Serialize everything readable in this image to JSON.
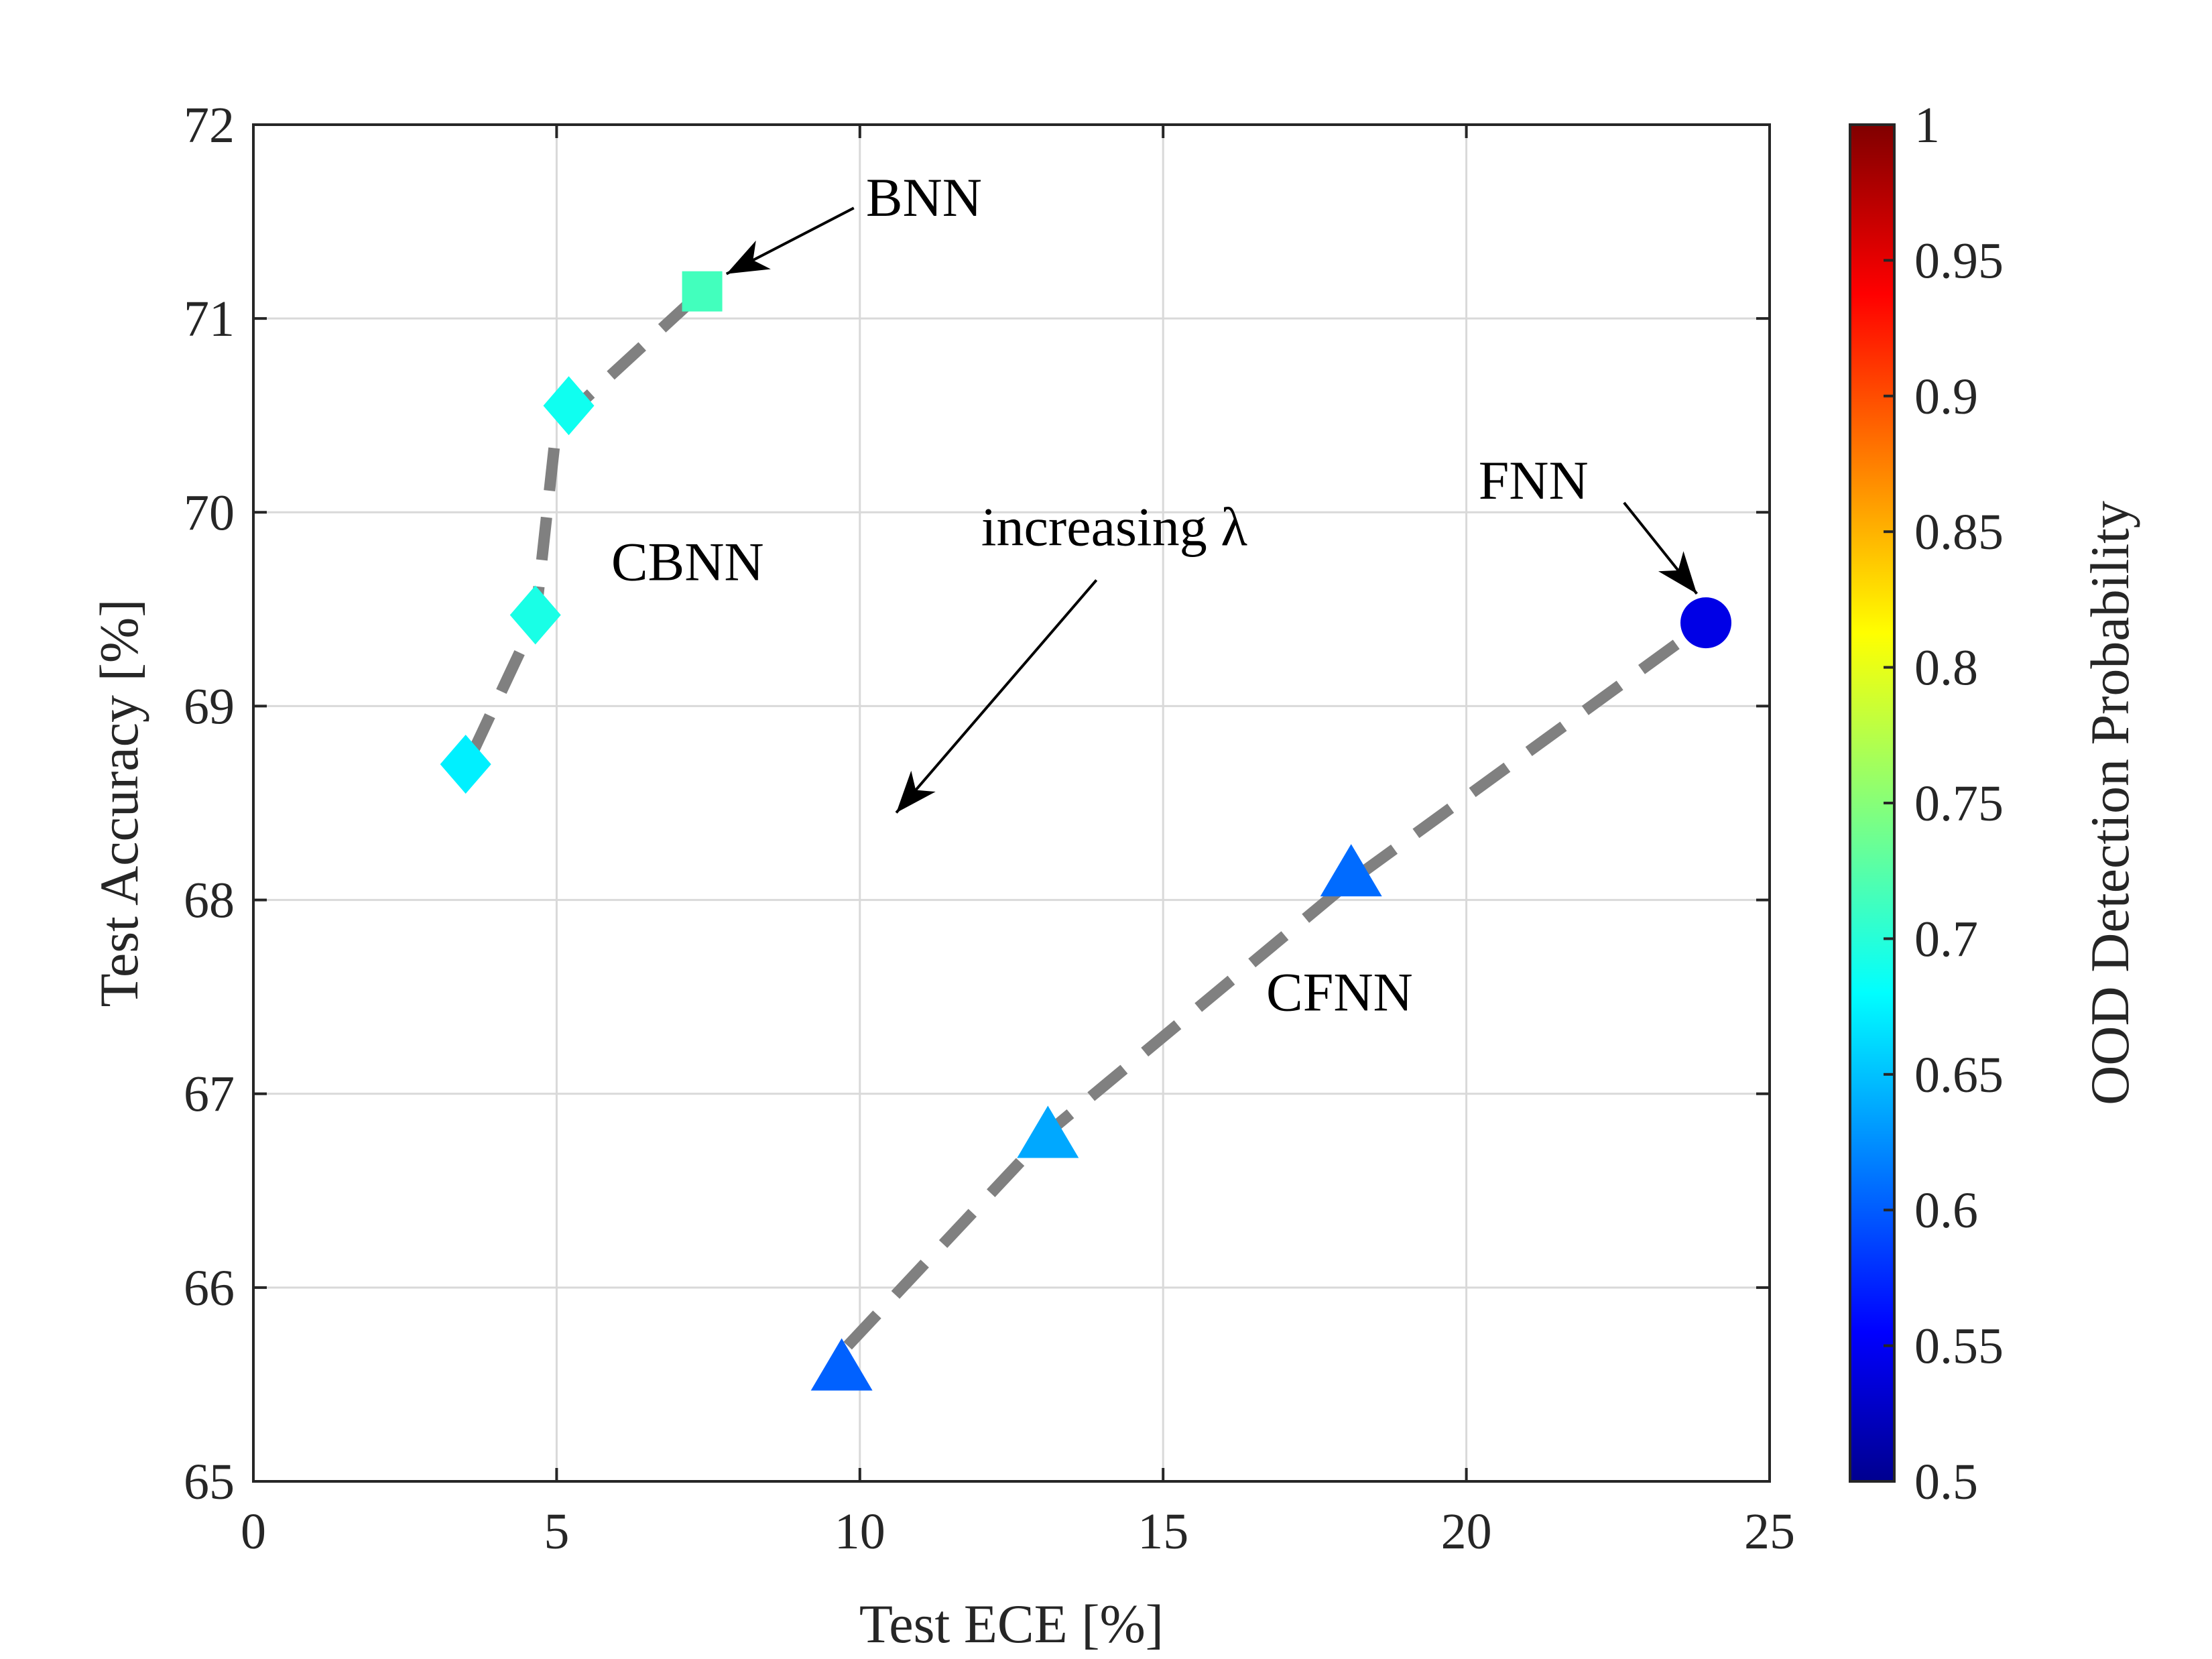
{
  "chart_data": {
    "type": "scatter",
    "xlabel": "Test ECE [%]",
    "ylabel": "Test Accuracy [%]",
    "xlim": [
      0,
      25
    ],
    "ylim": [
      65,
      72
    ],
    "xticks": [
      0,
      5,
      10,
      15,
      20,
      25
    ],
    "yticks": [
      65,
      66,
      67,
      68,
      69,
      70,
      71,
      72
    ],
    "grid": true,
    "colorbar": {
      "label": "OOD Detection Probability",
      "range": [
        0.5,
        1
      ],
      "ticks": [
        "0.5",
        "0.55",
        "0.6",
        "0.65",
        "0.7",
        "0.75",
        "0.8",
        "0.85",
        "0.9",
        "0.95",
        "1"
      ],
      "colormap": "jet"
    },
    "series": [
      {
        "name": "CBNN",
        "marker": "diamond",
        "line_style": "dashed",
        "points": [
          {
            "x": 3.5,
            "y": 68.7,
            "ood": 0.68
          },
          {
            "x": 4.65,
            "y": 69.47,
            "ood": 0.7
          },
          {
            "x": 5.2,
            "y": 70.55,
            "ood": 0.695
          }
        ]
      },
      {
        "name": "BNN",
        "marker": "square",
        "line_style": "dashed",
        "points": [
          {
            "x": 7.4,
            "y": 71.14,
            "ood": 0.72
          }
        ]
      },
      {
        "name": "CFNN",
        "marker": "triangle",
        "line_style": "dashed",
        "points": [
          {
            "x": 9.7,
            "y": 65.6,
            "ood": 0.61
          },
          {
            "x": 13.1,
            "y": 66.8,
            "ood": 0.645
          },
          {
            "x": 18.1,
            "y": 68.15,
            "ood": 0.615
          }
        ]
      },
      {
        "name": "FNN",
        "marker": "circle",
        "line_style": "dashed",
        "points": [
          {
            "x": 23.95,
            "y": 69.43,
            "ood": 0.55
          }
        ]
      }
    ],
    "lines": [
      {
        "name": "CBNN-BNN path",
        "points": [
          {
            "x": 3.6,
            "y": 68.75
          },
          {
            "x": 4.65,
            "y": 69.45
          },
          {
            "x": 5.0,
            "y": 70.45
          },
          {
            "x": 7.4,
            "y": 71.14
          }
        ]
      },
      {
        "name": "CFNN-FNN path",
        "points": [
          {
            "x": 9.8,
            "y": 65.7
          },
          {
            "x": 13.1,
            "y": 66.8
          },
          {
            "x": 18.1,
            "y": 68.1
          },
          {
            "x": 23.95,
            "y": 69.43
          }
        ]
      }
    ],
    "annotations": [
      {
        "text": "BNN",
        "arrow_to": {
          "x": 7.8,
          "y": 71.23
        },
        "arrow_from": {
          "x": 9.9,
          "y": 71.57
        },
        "text_at": {
          "x": 10.1,
          "y": 71.53
        }
      },
      {
        "text": "CBNN",
        "text_at": {
          "x": 5.9,
          "y": 69.65
        }
      },
      {
        "text": "increasing λ",
        "arrow_to": {
          "x": 10.6,
          "y": 68.45
        },
        "arrow_from": {
          "x": 13.9,
          "y": 69.65
        },
        "text_at": {
          "x": 12.0,
          "y": 69.83
        }
      },
      {
        "text": "FNN",
        "arrow_to": {
          "x": 23.8,
          "y": 69.58
        },
        "arrow_from": {
          "x": 22.6,
          "y": 70.05
        },
        "text_at": {
          "x": 20.2,
          "y": 70.07
        }
      },
      {
        "text": "CFNN",
        "text_at": {
          "x": 16.7,
          "y": 67.43
        }
      }
    ]
  }
}
